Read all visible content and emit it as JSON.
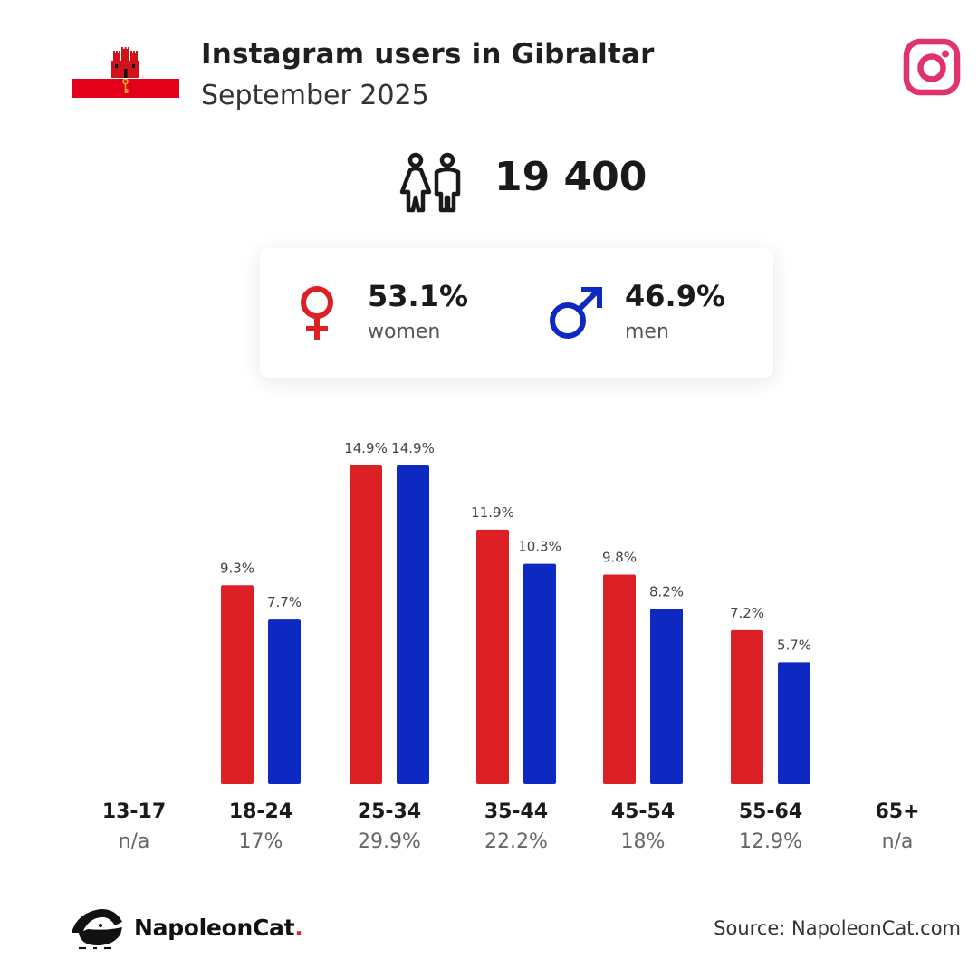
{
  "header": {
    "title": "Instagram users in Gibraltar",
    "subtitle": "September 2025"
  },
  "summary": {
    "total_users": "19 400",
    "women_pct": "53.1%",
    "women_label": "women",
    "men_pct": "46.9%",
    "men_label": "men"
  },
  "colors": {
    "women": "#dd1f26",
    "men": "#0e29c2",
    "instagram": "#e0336b"
  },
  "icons": {
    "flag": "gibraltar-flag",
    "brand": "instagram-icon",
    "users": "people-icon",
    "female": "female-symbol-icon",
    "male": "male-symbol-icon",
    "logo": "napoleoncat-logo"
  },
  "chart_data": {
    "type": "bar",
    "categories": [
      "13-17",
      "18-24",
      "25-34",
      "35-44",
      "45-54",
      "55-64",
      "65+"
    ],
    "category_totals": [
      "n/a",
      "17%",
      "29.9%",
      "22.2%",
      "18%",
      "12.9%",
      "n/a"
    ],
    "series": [
      {
        "name": "women",
        "values": [
          null,
          9.3,
          14.9,
          11.9,
          9.8,
          7.2,
          null
        ],
        "labels": [
          "",
          "9.3%",
          "14.9%",
          "11.9%",
          "9.8%",
          "7.2%",
          ""
        ]
      },
      {
        "name": "men",
        "values": [
          null,
          7.7,
          14.9,
          10.3,
          8.2,
          5.7,
          null
        ],
        "labels": [
          "",
          "7.7%",
          "14.9%",
          "10.3%",
          "8.2%",
          "5.7%",
          ""
        ]
      }
    ],
    "ylim": [
      0,
      14.9
    ],
    "grid": false,
    "legend": "none"
  },
  "footer": {
    "brand_name": "NapoleonCat",
    "brand_dot": ".",
    "source": "Source: NapoleonCat.com"
  }
}
